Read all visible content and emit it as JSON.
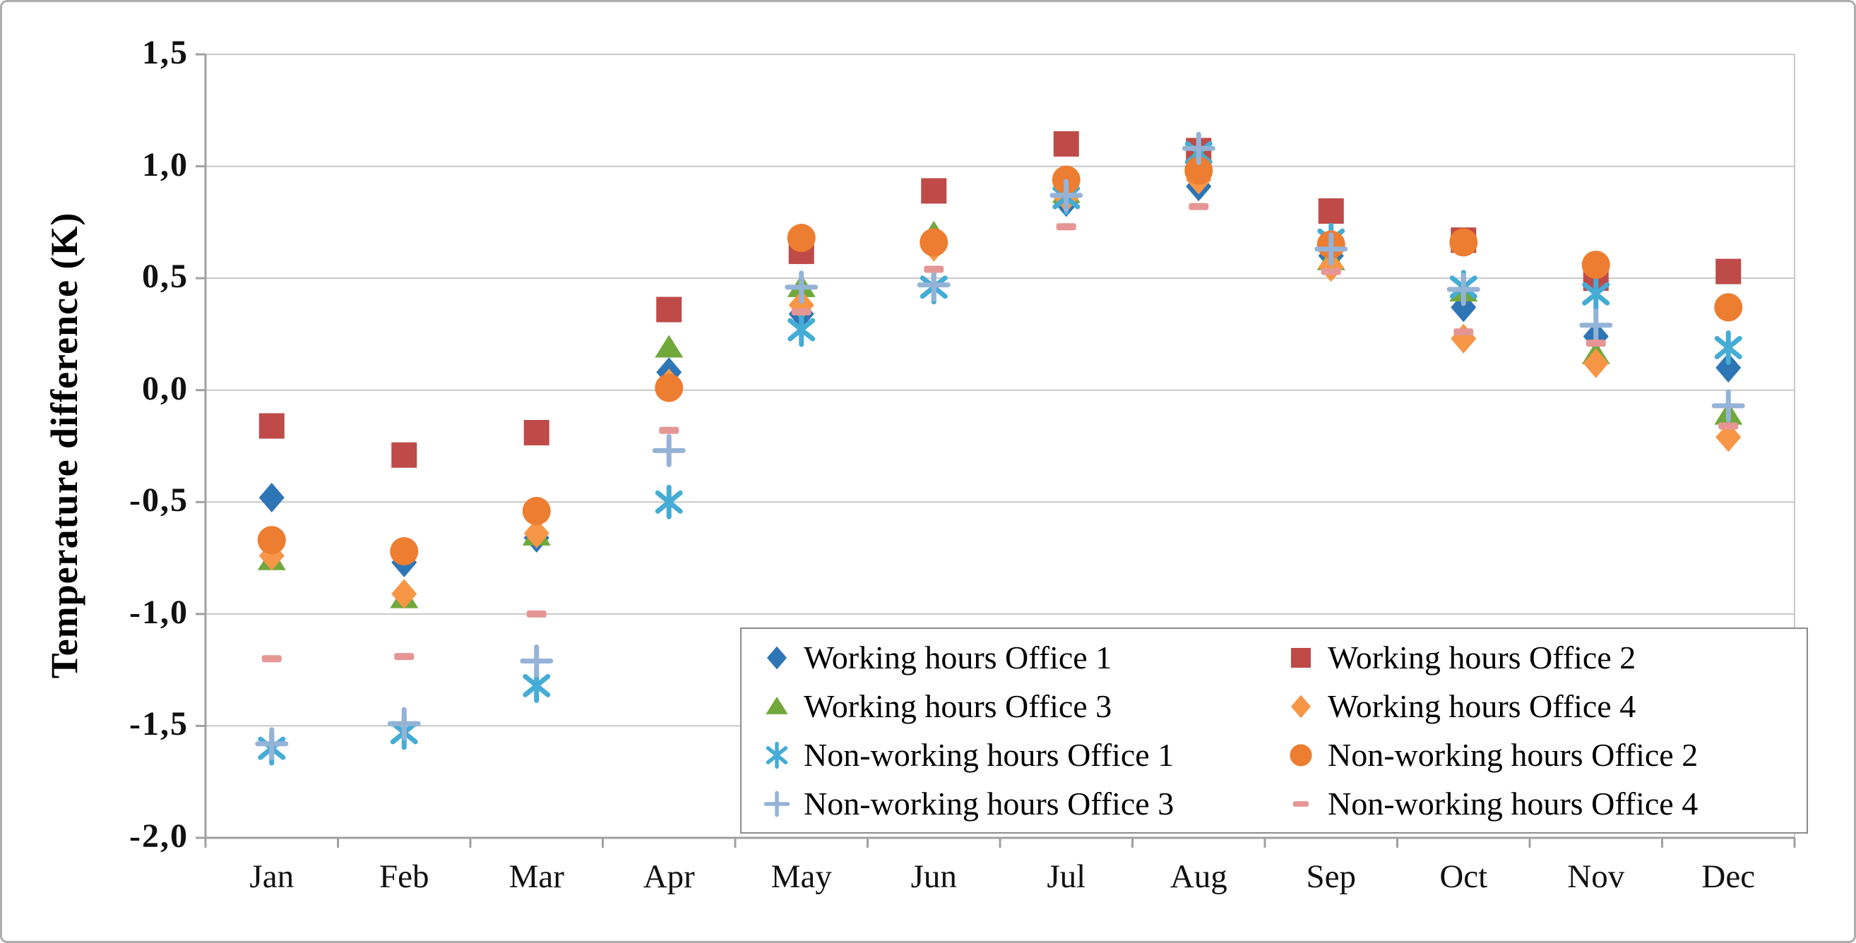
{
  "chart_data": {
    "type": "scatter",
    "title": "",
    "xlabel": "",
    "ylabel": "Temperature difference (K)",
    "categories": [
      "Jan",
      "Feb",
      "Mar",
      "Apr",
      "May",
      "Jun",
      "Jul",
      "Aug",
      "Sep",
      "Oct",
      "Nov",
      "Dec"
    ],
    "ylim": [
      -2.0,
      1.5
    ],
    "y_ticks": {
      "labels": [
        "1,5",
        "1,0",
        "0,5",
        "0,0",
        "-0,5",
        "-1,0",
        "-1,5",
        "-2,0"
      ],
      "values": [
        1.5,
        1.0,
        0.5,
        0.0,
        -0.5,
        -1.0,
        -1.5,
        -2.0
      ]
    },
    "decimal_separator": ",",
    "grid": "horizontal",
    "grid_color": "#c8c8c8",
    "axis_color": "#a0a0a0",
    "legend_position": "inside-bottom-right-2-columns",
    "legend_border_color": "#8c8c8c",
    "series": [
      {
        "name": "Working hours Office 1",
        "marker": "diamond",
        "color": "#2e75b6",
        "values": [
          -0.48,
          -0.77,
          -0.66,
          0.08,
          0.34,
          0.65,
          0.84,
          0.91,
          0.6,
          0.37,
          0.24,
          0.1
        ]
      },
      {
        "name": "Working hours Office 2",
        "marker": "square",
        "color": "#be4b48",
        "values": [
          -0.16,
          -0.29,
          -0.19,
          0.36,
          0.62,
          0.89,
          1.1,
          1.07,
          0.8,
          0.67,
          0.5,
          0.53
        ]
      },
      {
        "name": "Working hours Office 3",
        "marker": "triangle",
        "color": "#70a83c",
        "values": [
          -0.76,
          -0.93,
          -0.65,
          0.19,
          0.46,
          0.7,
          0.88,
          1.04,
          0.58,
          0.44,
          0.16,
          -0.11
        ]
      },
      {
        "name": "Working hours Office 4",
        "marker": "diamond",
        "color": "#f79646",
        "values": [
          -0.74,
          -0.91,
          -0.64,
          0.03,
          0.38,
          0.64,
          0.86,
          0.94,
          0.55,
          0.23,
          0.12,
          -0.21
        ]
      },
      {
        "name": "Non-working hours Office 1",
        "marker": "asterisk",
        "color": "#45acd5",
        "values": [
          -1.6,
          -1.53,
          -1.32,
          -0.5,
          0.27,
          0.46,
          0.86,
          1.06,
          0.67,
          0.46,
          0.43,
          0.19
        ]
      },
      {
        "name": "Non-working hours Office 2",
        "marker": "circle",
        "color": "#ed7d31",
        "values": [
          -0.67,
          -0.72,
          -0.54,
          0.01,
          0.68,
          0.66,
          0.94,
          0.98,
          0.65,
          0.66,
          0.56,
          0.37
        ]
      },
      {
        "name": "Non-working hours Office 3",
        "marker": "plus",
        "color": "#95b3d7",
        "values": [
          -1.58,
          -1.49,
          -1.21,
          -0.27,
          0.46,
          0.47,
          0.87,
          1.08,
          0.63,
          0.45,
          0.29,
          -0.07
        ]
      },
      {
        "name": "Non-working hours Office 4",
        "marker": "dash",
        "color": "#e59694",
        "values": [
          -1.2,
          -1.19,
          -1.0,
          -0.18,
          0.35,
          0.54,
          0.73,
          0.82,
          0.53,
          0.26,
          0.21,
          -0.16
        ]
      }
    ]
  }
}
